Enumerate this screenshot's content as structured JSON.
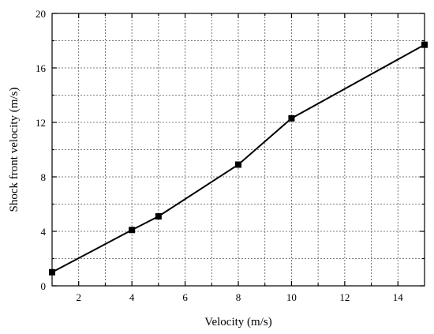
{
  "chart_data": {
    "type": "line",
    "title": "",
    "xlabel": "Velocity (m/s)",
    "ylabel": "Shock front velocity (m/s)",
    "xlim": [
      1,
      15
    ],
    "ylim": [
      0,
      20
    ],
    "x_ticks": [
      2,
      4,
      6,
      8,
      10,
      12,
      14
    ],
    "y_ticks": [
      0,
      4,
      8,
      12,
      16,
      20
    ],
    "x_grid": [
      3,
      5,
      7,
      9,
      11,
      13
    ],
    "y_grid": [
      2,
      6,
      10,
      14,
      18
    ],
    "grid": true,
    "series": [
      {
        "x": [
          1,
          4,
          5,
          8,
          10,
          15
        ],
        "y": [
          1.0,
          4.1,
          5.1,
          8.9,
          12.3,
          17.7
        ]
      }
    ]
  }
}
